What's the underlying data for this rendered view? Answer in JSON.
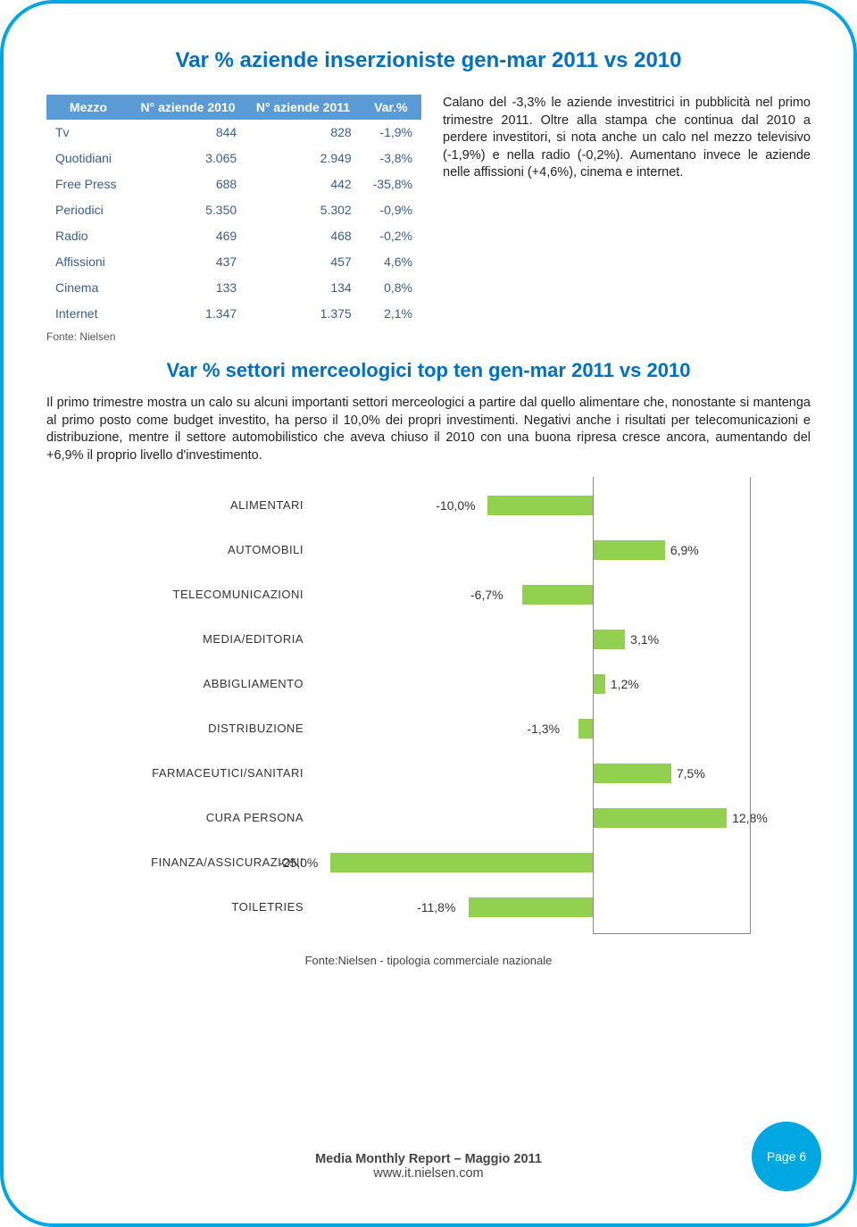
{
  "title1": "Var % aziende inserzioniste gen-mar 2011 vs 2010",
  "table": {
    "headers": [
      "Mezzo",
      "N° aziende 2010",
      "N° aziende 2011",
      "Var.%"
    ],
    "rows": [
      [
        "Tv",
        "844",
        "828",
        "-1,9%"
      ],
      [
        "Quotidiani",
        "3.065",
        "2.949",
        "-3,8%"
      ],
      [
        "Free Press",
        "688",
        "442",
        "-35,8%"
      ],
      [
        "Periodici",
        "5.350",
        "5.302",
        "-0,9%"
      ],
      [
        "Radio",
        "469",
        "468",
        "-0,2%"
      ],
      [
        "Affissioni",
        "437",
        "457",
        "4,6%"
      ],
      [
        "Cinema",
        "133",
        "134",
        "0,8%"
      ],
      [
        "Internet",
        "1.347",
        "1.375",
        "2,1%"
      ]
    ],
    "source": "Fonte: Nielsen"
  },
  "side_paragraph": "Calano del -3,3% le aziende investitrici in pubblicità nel primo trimestre 2011. Oltre alla stampa che continua dal 2010 a perdere investitori, si nota anche un calo nel mezzo televisivo (-1,9%) e nella radio (-0,2%). Aumentano invece le aziende nelle affissioni (+4,6%), cinema e internet.",
  "title2": "Var % settori merceologici top ten gen-mar 2011 vs 2010",
  "body_paragraph": "Il primo trimestre mostra un calo su alcuni importanti settori merceologici a partire dal quello alimentare che, nonostante si mantenga al primo posto come budget investito, ha perso il 10,0% dei propri investimenti. Negativi anche i risultati per telecomunicazioni e distribuzione, mentre il settore automobilistico che aveva chiuso il 2010 con una buona ripresa cresce ancora, aumentando del +6,9% il proprio livello d'investimento.",
  "chart": {
    "type": "bar",
    "bar_color": "#92d050",
    "text_color": "#333333",
    "categories": [
      "ALIMENTARI",
      "AUTOMOBILI",
      "TELECOMUNICAZIONI",
      "MEDIA/EDITORIA",
      "ABBIGLIAMENTO",
      "DISTRIBUZIONE",
      "FARMACEUTICI/SANITARI",
      "CURA PERSONA",
      "FINANZA/ASSICURAZIONI",
      "TOILETRIES"
    ],
    "values": [
      -10.0,
      6.9,
      -6.7,
      3.1,
      1.2,
      -1.3,
      7.5,
      12.8,
      -25.0,
      -11.8
    ],
    "value_labels": [
      "-10,0%",
      "6,9%",
      "-6,7%",
      "3,1%",
      "1,2%",
      "-1,3%",
      "7,5%",
      "12,8%",
      "-25,0%",
      "-11,8%"
    ],
    "xmin": -25,
    "xmax": 15,
    "source": "Fonte:Nielsen - tipologia commerciale nazionale"
  },
  "footer": {
    "line1": "Media Monthly Report – Maggio 2011",
    "line2": "www.it.nielsen.com"
  },
  "page_badge": "Page 6"
}
